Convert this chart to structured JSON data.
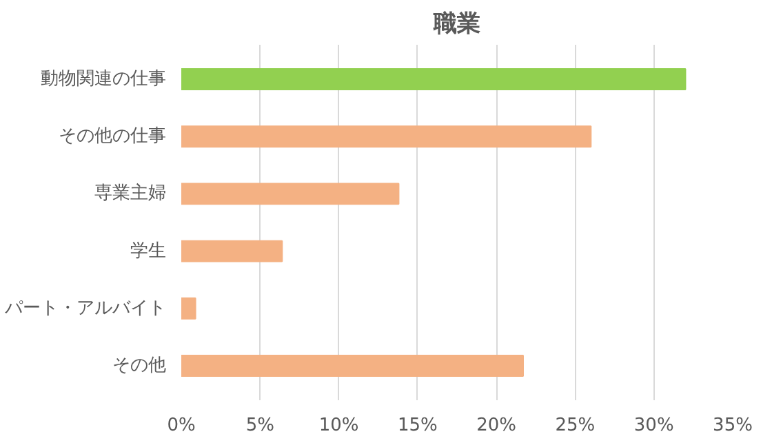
{
  "chart_data": {
    "type": "bar",
    "orientation": "horizontal",
    "title": "職業",
    "categories": [
      "動物関連の仕事",
      "その他の仕事",
      "専業主婦",
      "学生",
      "パート・アルバイト",
      "その他"
    ],
    "values": [
      32.0,
      26.0,
      13.8,
      6.4,
      0.9,
      21.7
    ],
    "colors": [
      "#92d050",
      "#f4b183",
      "#f4b183",
      "#f4b183",
      "#f4b183",
      "#f4b183"
    ],
    "xlim": [
      0,
      35
    ],
    "xticks": [
      {
        "value": 0,
        "label": "0%"
      },
      {
        "value": 5,
        "label": "5%"
      },
      {
        "value": 10,
        "label": "10%"
      },
      {
        "value": 15,
        "label": "15%"
      },
      {
        "value": 20,
        "label": "20%"
      },
      {
        "value": 25,
        "label": "25%"
      },
      {
        "value": 30,
        "label": "30%"
      },
      {
        "value": 35,
        "label": "35%"
      }
    ],
    "grid": "x"
  }
}
